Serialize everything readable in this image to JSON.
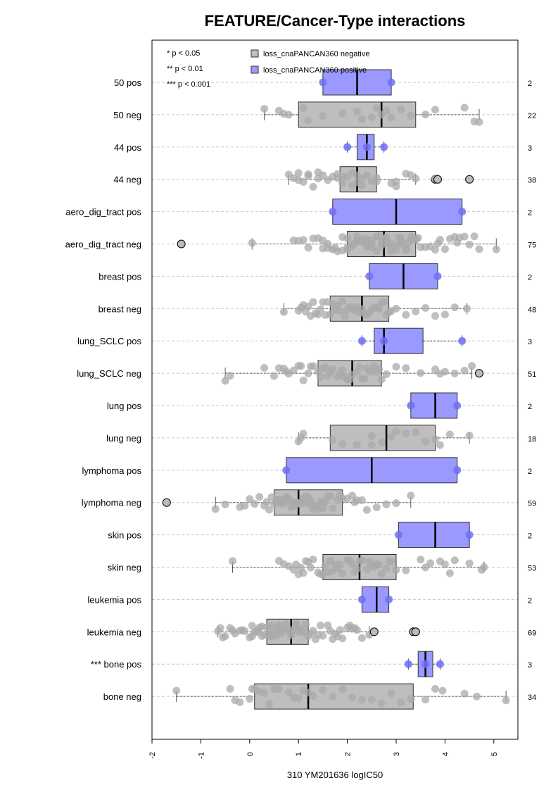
{
  "chart_data": {
    "type": "boxplot",
    "title": "FEATURE/Cancer-Type interactions",
    "xlabel": "310 YM201636 logIC50",
    "xlim": [
      -2,
      5.5
    ],
    "xticks": [
      "-2",
      "-1",
      "0",
      "1",
      "2",
      "3",
      "4",
      "5"
    ],
    "orientation": "horizontal",
    "grid": "dashed-horizontal",
    "legend_position": "top",
    "significance_legend": [
      "* p < 0.05",
      "** p < 0.01",
      "*** p < 0.001"
    ],
    "legend": [
      {
        "label": "loss_cnaPANCAN360 negative",
        "color": "#bebebe"
      },
      {
        "label": "loss_cnaPANCAN360 positive",
        "color": "#9999ff"
      }
    ],
    "colors": {
      "negative": "#bebebe",
      "positive": "#9999ff",
      "neg_point": "#a9a9a9",
      "pos_point": "#6f6ff5"
    },
    "groups": [
      {
        "label": "50 pos",
        "count": "2",
        "positive": true,
        "whisker": [
          1.5,
          2.9
        ],
        "box": [
          1.5,
          2.9
        ],
        "median": 2.2,
        "points": [
          1.5,
          2.9
        ]
      },
      {
        "label": "50 neg",
        "count": "22",
        "positive": false,
        "whisker": [
          0.3,
          4.7
        ],
        "box": [
          1.0,
          3.4
        ],
        "median": 2.7,
        "points": [
          0.3,
          0.6,
          0.7,
          0.8,
          1.1,
          1.2,
          1.5,
          1.9,
          2.2,
          2.3,
          2.5,
          2.6,
          2.7,
          2.8,
          2.9,
          3.1,
          3.3,
          3.6,
          3.8,
          4.4,
          4.6,
          4.7
        ]
      },
      {
        "label": "44 pos",
        "count": "3",
        "positive": true,
        "whisker": [
          2.0,
          2.75
        ],
        "box": [
          2.2,
          2.55
        ],
        "median": 2.4,
        "points": [
          2.0,
          2.4,
          2.75
        ]
      },
      {
        "label": "44 neg",
        "count": "38",
        "positive": false,
        "whisker": [
          0.8,
          3.4
        ],
        "box": [
          1.85,
          2.6
        ],
        "median": 2.2,
        "points": [
          0.8,
          0.9,
          1.0,
          1.1,
          1.2,
          1.2,
          1.3,
          1.4,
          1.5,
          1.6,
          1.7,
          1.8,
          1.9,
          1.9,
          2.0,
          2.1,
          2.1,
          2.2,
          2.3,
          2.3,
          2.4,
          2.5,
          2.6,
          2.9,
          3.0,
          3.2,
          3.3,
          3.4,
          1.0,
          1.4,
          1.8,
          2.2,
          2.6,
          3.0,
          3.8,
          3.8,
          3.85,
          4.5
        ],
        "outliers": [
          3.8,
          3.85,
          4.5
        ]
      },
      {
        "label": "aero_dig_tract pos",
        "count": "2",
        "positive": true,
        "whisker": [
          1.7,
          4.35
        ],
        "box": [
          1.7,
          4.35
        ],
        "median": 3.0,
        "points": [
          1.7,
          4.35
        ]
      },
      {
        "label": "aero_dig_tract neg",
        "count": "75",
        "positive": false,
        "whisker": [
          0.05,
          5.05
        ],
        "box": [
          2.0,
          3.4
        ],
        "median": 2.75,
        "points": [
          0.05,
          0.9,
          1.1,
          1.2,
          1.4,
          1.5,
          1.6,
          1.7,
          1.8,
          1.9,
          2.0,
          2.0,
          2.1,
          2.1,
          2.2,
          2.2,
          2.3,
          2.3,
          2.4,
          2.4,
          2.5,
          2.5,
          2.6,
          2.6,
          2.7,
          2.7,
          2.8,
          2.8,
          2.9,
          2.9,
          3.0,
          3.0,
          3.1,
          3.1,
          3.2,
          3.2,
          3.3,
          3.3,
          3.4,
          3.5,
          3.6,
          3.7,
          3.8,
          3.9,
          4.0,
          4.1,
          4.2,
          4.3,
          4.4,
          4.5,
          4.7,
          5.05,
          1.3,
          1.6,
          1.9,
          2.2,
          2.5,
          2.8,
          3.1,
          3.4,
          1.0,
          1.5,
          2.0,
          2.4,
          2.65,
          2.85,
          3.05,
          3.25,
          3.45,
          3.85,
          4.25,
          4.6,
          1.75,
          2.15,
          -1.4
        ],
        "outliers": [
          -1.4
        ]
      },
      {
        "label": "breast pos",
        "count": "2",
        "positive": true,
        "whisker": [
          2.45,
          3.85
        ],
        "box": [
          2.45,
          3.85
        ],
        "median": 3.15,
        "points": [
          2.45,
          3.85
        ]
      },
      {
        "label": "breast neg",
        "count": "48",
        "positive": false,
        "whisker": [
          0.7,
          4.45
        ],
        "box": [
          1.65,
          2.85
        ],
        "median": 2.3,
        "points": [
          0.7,
          1.0,
          1.1,
          1.2,
          1.3,
          1.4,
          1.5,
          1.6,
          1.7,
          1.8,
          1.9,
          2.0,
          2.1,
          2.2,
          2.3,
          2.4,
          2.5,
          2.6,
          2.7,
          2.8,
          2.9,
          3.0,
          3.2,
          3.4,
          3.6,
          3.8,
          4.0,
          4.2,
          4.45,
          1.15,
          1.35,
          1.55,
          1.75,
          1.95,
          2.15,
          2.35,
          2.55,
          2.75,
          1.25,
          1.45,
          1.85,
          2.05,
          2.25,
          2.45,
          2.65,
          1.05,
          1.65,
          2.85
        ]
      },
      {
        "label": "lung_SCLC pos",
        "count": "3",
        "positive": true,
        "whisker": [
          2.3,
          4.35
        ],
        "box": [
          2.55,
          3.55
        ],
        "median": 2.75,
        "points": [
          2.3,
          2.75,
          4.35
        ]
      },
      {
        "label": "lung_SCLC neg",
        "count": "51",
        "positive": false,
        "whisker": [
          -0.5,
          4.55
        ],
        "box": [
          1.4,
          2.7
        ],
        "median": 2.1,
        "points": [
          -0.5,
          -0.4,
          0.3,
          0.5,
          0.6,
          0.7,
          0.8,
          0.9,
          1.0,
          1.1,
          1.2,
          1.3,
          1.4,
          1.5,
          1.6,
          1.7,
          1.8,
          1.9,
          2.0,
          2.1,
          2.2,
          2.3,
          2.4,
          2.5,
          2.6,
          2.7,
          2.8,
          3.0,
          3.2,
          3.5,
          3.8,
          4.0,
          4.2,
          4.4,
          4.55,
          1.25,
          1.45,
          1.65,
          1.85,
          2.05,
          2.25,
          2.45,
          2.65,
          0.75,
          1.05,
          1.55,
          1.95,
          2.35,
          2.55,
          3.9,
          4.7
        ],
        "outliers": [
          4.7
        ]
      },
      {
        "label": "lung pos",
        "count": "2",
        "positive": true,
        "whisker": [
          3.3,
          4.25
        ],
        "box": [
          3.3,
          4.25
        ],
        "median": 3.8,
        "points": [
          3.3,
          4.25
        ]
      },
      {
        "label": "lung neg",
        "count": "18",
        "positive": false,
        "whisker": [
          1.0,
          4.5
        ],
        "box": [
          1.65,
          3.8
        ],
        "median": 2.8,
        "points": [
          1.0,
          1.05,
          1.1,
          1.7,
          1.9,
          2.2,
          2.5,
          2.5,
          2.7,
          2.9,
          3.0,
          3.2,
          3.4,
          3.6,
          3.8,
          3.9,
          4.1,
          4.5
        ]
      },
      {
        "label": "lymphoma pos",
        "count": "2",
        "positive": true,
        "whisker": [
          0.75,
          4.25
        ],
        "box": [
          0.75,
          4.25
        ],
        "median": 2.5,
        "points": [
          0.75,
          4.25
        ]
      },
      {
        "label": "lymphoma neg",
        "count": "59",
        "positive": false,
        "whisker": [
          -0.7,
          3.3
        ],
        "box": [
          0.5,
          1.9
        ],
        "median": 1.0,
        "points": [
          -0.7,
          -0.5,
          -0.2,
          -0.1,
          0.0,
          0.1,
          0.2,
          0.3,
          0.4,
          0.5,
          0.55,
          0.6,
          0.65,
          0.7,
          0.75,
          0.8,
          0.85,
          0.9,
          0.95,
          1.0,
          1.05,
          1.1,
          1.15,
          1.2,
          1.25,
          1.3,
          1.35,
          1.4,
          1.45,
          1.5,
          1.55,
          1.6,
          1.7,
          1.8,
          1.9,
          2.0,
          2.1,
          2.2,
          2.3,
          2.4,
          2.6,
          2.8,
          3.0,
          3.3,
          0.35,
          0.45,
          0.6,
          0.7,
          0.8,
          0.9,
          1.0,
          1.1,
          1.2,
          1.3,
          1.5,
          1.65,
          1.85,
          2.15,
          -1.7
        ],
        "outliers": [
          -1.7
        ]
      },
      {
        "label": "skin pos",
        "count": "2",
        "positive": true,
        "whisker": [
          3.05,
          4.5
        ],
        "box": [
          3.05,
          4.5
        ],
        "median": 3.8,
        "points": [
          3.05,
          4.5
        ]
      },
      {
        "label": "skin neg",
        "count": "53",
        "positive": false,
        "whisker": [
          -0.35,
          4.8
        ],
        "box": [
          1.5,
          3.0
        ],
        "median": 2.25,
        "points": [
          -0.35,
          0.6,
          0.7,
          0.8,
          0.9,
          1.0,
          1.1,
          1.2,
          1.3,
          1.4,
          1.5,
          1.6,
          1.7,
          1.8,
          1.9,
          2.0,
          2.1,
          2.2,
          2.3,
          2.4,
          2.5,
          2.6,
          2.7,
          2.8,
          2.9,
          3.0,
          3.2,
          3.5,
          3.7,
          3.9,
          4.0,
          4.2,
          4.5,
          4.8,
          1.05,
          1.25,
          1.45,
          1.65,
          1.85,
          2.05,
          2.25,
          2.45,
          2.65,
          2.85,
          0.95,
          1.15,
          1.55,
          1.75,
          2.15,
          2.55,
          3.6,
          4.1,
          4.75
        ]
      },
      {
        "label": "leukemia pos",
        "count": "2",
        "positive": true,
        "whisker": [
          2.3,
          2.85
        ],
        "box": [
          2.3,
          2.85
        ],
        "median": 2.6,
        "points": [
          2.3,
          2.85
        ]
      },
      {
        "label": "leukemia neg",
        "count": "69",
        "positive": false,
        "whisker": [
          -0.65,
          2.45
        ],
        "box": [
          0.35,
          1.2
        ],
        "median": 0.85,
        "points": [
          -0.65,
          -0.6,
          -0.5,
          -0.4,
          -0.3,
          -0.2,
          -0.1,
          0.0,
          0.05,
          0.1,
          0.15,
          0.2,
          0.25,
          0.3,
          0.35,
          0.4,
          0.45,
          0.5,
          0.55,
          0.6,
          0.65,
          0.7,
          0.75,
          0.8,
          0.85,
          0.9,
          0.95,
          1.0,
          1.05,
          1.1,
          1.15,
          1.2,
          1.3,
          1.4,
          1.5,
          1.6,
          1.7,
          1.8,
          1.9,
          2.0,
          2.1,
          2.2,
          2.3,
          2.45,
          -0.55,
          -0.35,
          -0.15,
          0.05,
          0.25,
          0.45,
          0.65,
          0.85,
          1.05,
          1.25,
          1.45,
          1.65,
          1.85,
          2.05,
          0.15,
          0.55,
          0.95,
          1.35,
          1.75,
          2.15,
          2.55,
          3.35,
          3.4,
          3.4,
          0.4
        ],
        "outliers": [
          2.55,
          3.35,
          3.4,
          3.4
        ]
      },
      {
        "label": "*** bone pos",
        "count": "3",
        "positive": true,
        "whisker": [
          3.25,
          3.9
        ],
        "box": [
          3.45,
          3.75
        ],
        "median": 3.6,
        "points": [
          3.25,
          3.6,
          3.9
        ]
      },
      {
        "label": "bone neg",
        "count": "34",
        "positive": false,
        "whisker": [
          -1.5,
          5.25
        ],
        "box": [
          0.1,
          3.35
        ],
        "median": 1.2,
        "points": [
          -1.5,
          -0.4,
          -0.3,
          -0.2,
          0.0,
          0.05,
          0.1,
          0.2,
          0.3,
          0.4,
          0.5,
          0.6,
          0.8,
          0.9,
          1.0,
          1.1,
          1.2,
          1.3,
          1.5,
          1.7,
          1.9,
          2.1,
          2.3,
          2.5,
          2.7,
          2.9,
          3.1,
          3.3,
          3.6,
          3.8,
          3.95,
          4.4,
          4.65,
          5.25
        ]
      }
    ]
  }
}
